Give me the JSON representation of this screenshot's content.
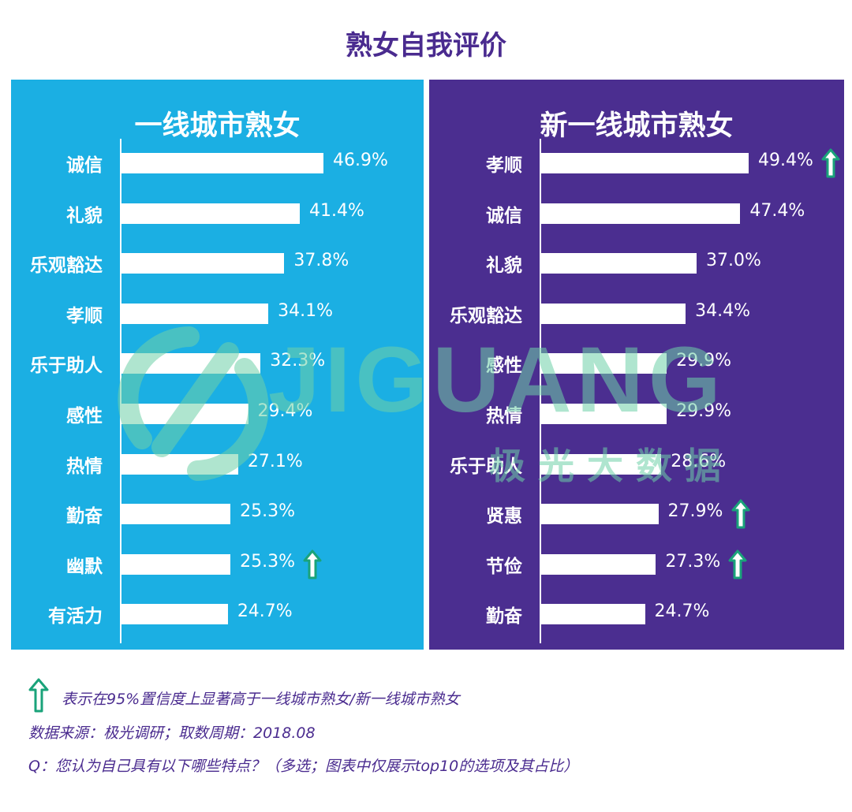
{
  "title": "熟女自我评价",
  "chart_data": [
    {
      "type": "bar",
      "orientation": "horizontal",
      "title": "一线城市熟女",
      "categories": [
        "诚信",
        "礼貌",
        "乐观豁达",
        "孝顺",
        "乐于助人",
        "感性",
        "热情",
        "勤奋",
        "幽默",
        "有活力"
      ],
      "values": [
        46.9,
        41.4,
        37.8,
        34.1,
        32.3,
        29.4,
        27.1,
        25.3,
        25.3,
        24.7
      ],
      "labels": [
        "46.9%",
        "41.4%",
        "37.8%",
        "34.1%",
        "32.3%",
        "29.4%",
        "27.1%",
        "25.3%",
        "25.3%",
        "24.7%"
      ],
      "significant": [
        false,
        false,
        false,
        false,
        false,
        false,
        false,
        false,
        true,
        false
      ],
      "unit": "%",
      "background": "#1bafe3"
    },
    {
      "type": "bar",
      "orientation": "horizontal",
      "title": "新一线城市熟女",
      "categories": [
        "孝顺",
        "诚信",
        "礼貌",
        "乐观豁达",
        "感性",
        "热情",
        "乐于助人",
        "贤惠",
        "节俭",
        "勤奋"
      ],
      "values": [
        49.4,
        47.4,
        37.0,
        34.4,
        29.9,
        29.9,
        28.6,
        27.9,
        27.3,
        24.7
      ],
      "labels": [
        "49.4%",
        "47.4%",
        "37.0%",
        "34.4%",
        "29.9%",
        "29.9%",
        "28.6%",
        "27.9%",
        "27.3%",
        "24.7%"
      ],
      "significant": [
        true,
        false,
        false,
        false,
        false,
        false,
        false,
        true,
        true,
        false
      ],
      "unit": "%",
      "background": "#4b2e90"
    }
  ],
  "watermark": {
    "brand": "JIGUANG",
    "subtitle": "极 光 大 数 据"
  },
  "footnotes": {
    "legend": "表示在95%置信度上显著高于一线城市熟女/新一线城市熟女",
    "source": "数据来源：极光调研；取数周期：2018.08",
    "question": "Q：您认为自己具有以下哪些特点？（多选；图表中仅展示top10的选项及其占比）"
  },
  "colors": {
    "title": "#4a2b8f",
    "arrow": "#1aa37a",
    "watermark": "#6fd1a8",
    "bar": "#ffffff"
  }
}
